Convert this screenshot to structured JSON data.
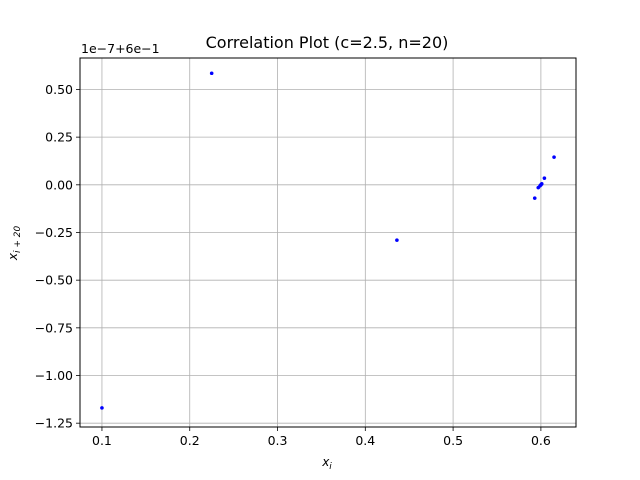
{
  "chart_data": {
    "type": "scatter",
    "title": "Correlation Plot (c=2.5, n=20)",
    "xlabel": {
      "base": "x",
      "sub": "i"
    },
    "ylabel": {
      "base": "x",
      "sub": "i + 20"
    },
    "y_offset_label": "1e−7+6e−1",
    "xlim": [
      0.075,
      0.64
    ],
    "ylim": [
      -1.27,
      0.665
    ],
    "y_units_note": "y values shown in offset units: actual = 0.6 + v * 1e-7",
    "x_ticks": [
      {
        "value": 0.1,
        "label": "0.1"
      },
      {
        "value": 0.2,
        "label": "0.2"
      },
      {
        "value": 0.3,
        "label": "0.3"
      },
      {
        "value": 0.4,
        "label": "0.4"
      },
      {
        "value": 0.5,
        "label": "0.5"
      },
      {
        "value": 0.6,
        "label": "0.6"
      }
    ],
    "y_ticks": [
      {
        "value": 0.5,
        "label": "0.50"
      },
      {
        "value": 0.25,
        "label": "0.25"
      },
      {
        "value": 0.0,
        "label": "0.00"
      },
      {
        "value": -0.25,
        "label": "−0.25"
      },
      {
        "value": -0.5,
        "label": "−0.50"
      },
      {
        "value": -0.75,
        "label": "−0.75"
      },
      {
        "value": -1.0,
        "label": "−1.00"
      },
      {
        "value": -1.25,
        "label": "−1.25"
      }
    ],
    "grid": true,
    "marker_color": "#0000ff",
    "grid_color": "#b0b0b0",
    "points": [
      {
        "x": 0.1,
        "y": -1.17
      },
      {
        "x": 0.225,
        "y": 0.585
      },
      {
        "x": 0.436,
        "y": -0.29
      },
      {
        "x": 0.593,
        "y": -0.07
      },
      {
        "x": 0.597,
        "y": -0.015
      },
      {
        "x": 0.599,
        "y": -0.005
      },
      {
        "x": 0.6,
        "y": 0.0
      },
      {
        "x": 0.601,
        "y": 0.005
      },
      {
        "x": 0.604,
        "y": 0.035
      },
      {
        "x": 0.615,
        "y": 0.145
      }
    ]
  }
}
